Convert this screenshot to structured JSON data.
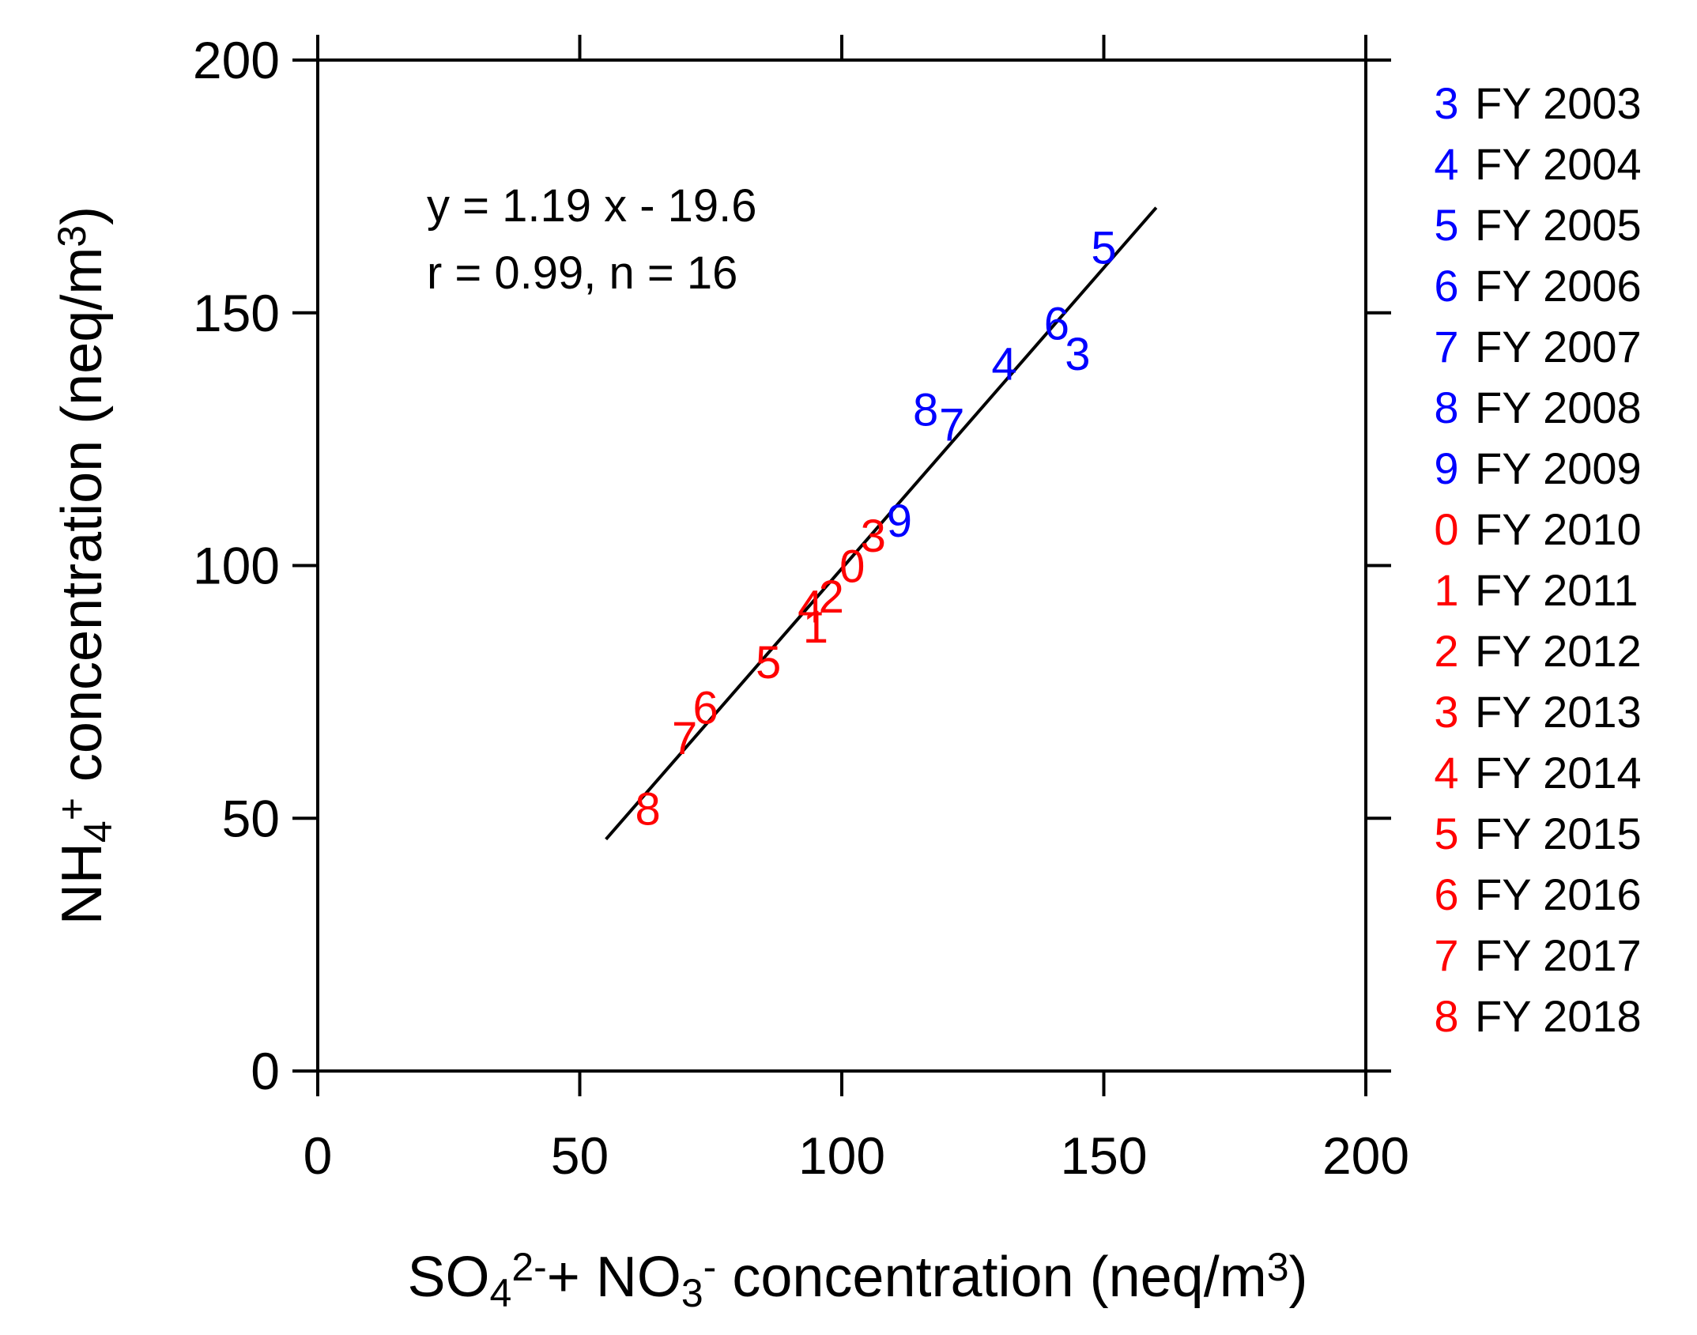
{
  "chart_data": {
    "type": "scatter",
    "xlabel": {
      "parts": [
        {
          "text": "SO",
          "style": "normal"
        },
        {
          "text": "4",
          "style": "sub"
        },
        {
          "text": "2-",
          "style": "sup"
        },
        {
          "text": "+ NO",
          "style": "normal"
        },
        {
          "text": "3",
          "style": "sub"
        },
        {
          "text": "-",
          "style": "sup"
        },
        {
          "text": " concentration (neq/m",
          "style": "normal"
        },
        {
          "text": "3",
          "style": "sup"
        },
        {
          "text": ")",
          "style": "normal"
        }
      ]
    },
    "ylabel": {
      "parts": [
        {
          "text": "NH",
          "style": "normal"
        },
        {
          "text": "4",
          "style": "sub"
        },
        {
          "text": "+",
          "style": "sup"
        },
        {
          "text": " concentration (neq/m",
          "style": "normal"
        },
        {
          "text": "3",
          "style": "sup"
        },
        {
          "text": ")",
          "style": "normal"
        }
      ]
    },
    "xlim": [
      0,
      200
    ],
    "ylim": [
      0,
      200
    ],
    "xticks": [
      0,
      50,
      100,
      150,
      200
    ],
    "yticks": [
      0,
      50,
      100,
      150,
      200
    ],
    "xtick_labels": [
      "0",
      "50",
      "100",
      "150",
      "200"
    ],
    "ytick_labels": [
      "0",
      "50",
      "100",
      "150",
      "200"
    ],
    "grid": false,
    "annotations": [
      "y = 1.19 x - 19.6",
      "r = 0.99, n = 16"
    ],
    "fit_line": {
      "slope": 1.19,
      "intercept": -19.6,
      "x_start": 55,
      "x_end": 160
    },
    "colors": {
      "early": "#0000ff",
      "late": "#ff0000",
      "axis": "#000000"
    },
    "points": [
      {
        "year": "FY 2003",
        "marker": "3",
        "x": 145,
        "y": 142,
        "color": "#0000ff"
      },
      {
        "year": "FY 2004",
        "marker": "4",
        "x": 131,
        "y": 140,
        "color": "#0000ff"
      },
      {
        "year": "FY 2005",
        "marker": "5",
        "x": 150,
        "y": 163,
        "color": "#0000ff"
      },
      {
        "year": "FY 2006",
        "marker": "6",
        "x": 141,
        "y": 148,
        "color": "#0000ff"
      },
      {
        "year": "FY 2007",
        "marker": "7",
        "x": 121,
        "y": 128,
        "color": "#0000ff"
      },
      {
        "year": "FY 2008",
        "marker": "8",
        "x": 116,
        "y": 131,
        "color": "#0000ff"
      },
      {
        "year": "FY 2009",
        "marker": "9",
        "x": 111,
        "y": 109,
        "color": "#0000ff"
      },
      {
        "year": "FY 2010",
        "marker": "0",
        "x": 102,
        "y": 100,
        "color": "#ff0000"
      },
      {
        "year": "FY 2011",
        "marker": "1",
        "x": 95,
        "y": 88,
        "color": "#ff0000"
      },
      {
        "year": "FY 2012",
        "marker": "2",
        "x": 98,
        "y": 94,
        "color": "#ff0000"
      },
      {
        "year": "FY 2013",
        "marker": "3",
        "x": 106,
        "y": 106,
        "color": "#ff0000"
      },
      {
        "year": "FY 2014",
        "marker": "4",
        "x": 94,
        "y": 92,
        "color": "#ff0000"
      },
      {
        "year": "FY 2015",
        "marker": "5",
        "x": 86,
        "y": 81,
        "color": "#ff0000"
      },
      {
        "year": "FY 2016",
        "marker": "6",
        "x": 74,
        "y": 72,
        "color": "#ff0000"
      },
      {
        "year": "FY 2017",
        "marker": "7",
        "x": 70,
        "y": 66,
        "color": "#ff0000"
      },
      {
        "year": "FY 2018",
        "marker": "8",
        "x": 63,
        "y": 52,
        "color": "#ff0000"
      }
    ]
  }
}
